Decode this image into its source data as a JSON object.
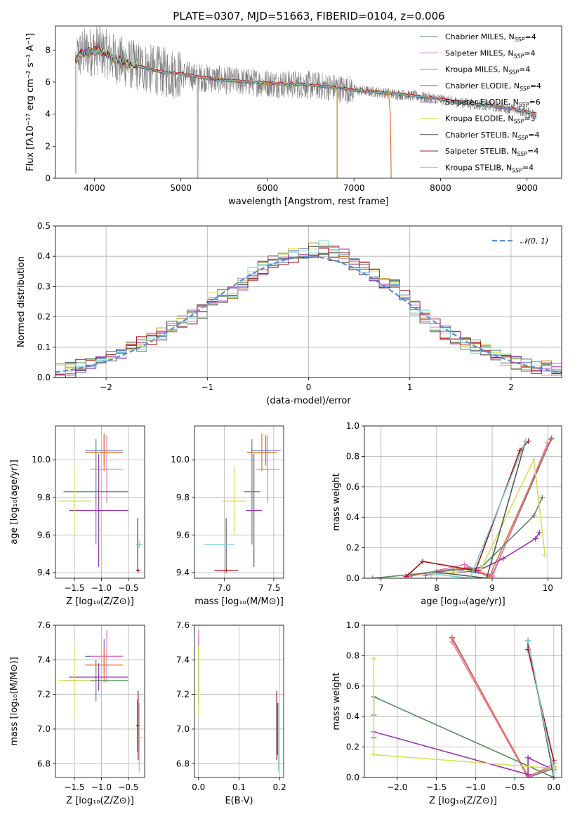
{
  "figure": {
    "title": "PLATE=0307, MJD=51663, FIBERID=0104, z=0.006"
  },
  "colors": {
    "chabrier_miles": "#5b73c4",
    "salpeter_miles": "#e377c2",
    "kroupa_miles": "#b8860b",
    "chabrier_elodie": "#5a8a62",
    "salpeter_elodie": "#9b30b0",
    "kroupa_elodie": "#d4e157",
    "chabrier_stelib": "#555555",
    "salpeter_stelib": "#a50f15",
    "kroupa_stelib": "#79d0d2",
    "normal": "#5b8bd8",
    "orange": "#e8742a",
    "grid": "#b0b0b0"
  },
  "chart_data": [
    {
      "id": "spectrum",
      "type": "line",
      "title": "PLATE=0307, MJD=51663, FIBERID=0104, z=0.006",
      "xlabel": "wavelength [Angstrom, rest frame]",
      "ylabel": "Flux [fλ10⁻¹⁷ erg cm⁻² s⁻¹ A⁻¹]",
      "xlim": [
        3550,
        9400
      ],
      "ylim": [
        0,
        9.5
      ],
      "xticks": [
        4000,
        5000,
        6000,
        7000,
        8000,
        9000
      ],
      "yticks": [
        0,
        2,
        4,
        6,
        8
      ],
      "grid": false,
      "legend_position": "top-right",
      "data_continuum": {
        "x": [
          3780,
          3850,
          3950,
          4050,
          4150,
          4300,
          4500,
          4800,
          5000,
          5200,
          5500,
          5800,
          6100,
          6400,
          6700,
          7000,
          7300,
          7600,
          7900,
          8200,
          8500,
          8800,
          9100
        ],
        "y": [
          7.4,
          7.8,
          7.9,
          8.0,
          7.7,
          7.3,
          7.0,
          6.6,
          6.5,
          6.3,
          6.1,
          6.0,
          5.9,
          5.85,
          5.7,
          5.5,
          5.35,
          5.2,
          5.0,
          4.75,
          4.55,
          4.35,
          4.0
        ]
      },
      "series": [
        {
          "name": "Chabrier MILES, N_SSP=4",
          "legend": "Chabrier MILES, N",
          "nssp": "4",
          "color_key": "chabrier_miles"
        },
        {
          "name": "Salpeter MILES, N_SSP=4",
          "legend": "Salpeter MILES, N",
          "nssp": "4",
          "color_key": "salpeter_miles"
        },
        {
          "name": "Kroupa MILES, N_SSP=4",
          "legend": "Kroupa MILES, N",
          "nssp": "4",
          "color_key": "kroupa_miles"
        },
        {
          "name": "Chabrier ELODIE, N_SSP=4",
          "legend": "Chabrier ELODIE, N",
          "nssp": "4",
          "color_key": "chabrier_elodie"
        },
        {
          "name": "Salpeter ELODIE, N_SSP=6",
          "legend": "Salpeter ELODIE, N",
          "nssp": "6",
          "color_key": "salpeter_elodie"
        },
        {
          "name": "Kroupa ELODIE, N_SSP=3",
          "legend": "Kroupa ELODIE, N",
          "nssp": "3",
          "color_key": "kroupa_elodie"
        },
        {
          "name": "Chabrier STELIB, N_SSP=4",
          "legend": "Chabrier STELIB, N",
          "nssp": "4",
          "color_key": "chabrier_stelib"
        },
        {
          "name": "Salpeter STELIB, N_SSP=4",
          "legend": "Salpeter STELIB, N",
          "nssp": "4",
          "color_key": "salpeter_stelib"
        },
        {
          "name": "Kroupa STELIB, N_SSP=4",
          "legend": "Kroupa STELIB, N",
          "nssp": "4",
          "color_key": "kroupa_stelib"
        }
      ],
      "legend_subscript": "SSP"
    },
    {
      "id": "residuals",
      "type": "line",
      "xlabel": "(data-model)/error",
      "ylabel": "Normed distribution",
      "xlim": [
        -2.5,
        2.5
      ],
      "ylim": [
        0,
        0.5
      ],
      "xticks": [
        -2,
        -1,
        0,
        1,
        2
      ],
      "xticklabels": [
        "−2",
        "−1",
        "0",
        "1",
        "2"
      ],
      "yticks": [
        0.0,
        0.1,
        0.2,
        0.3,
        0.4,
        0.5
      ],
      "yticklabels": [
        "0.0",
        "0.1",
        "0.2",
        "0.3",
        "0.4",
        "0.5"
      ],
      "grid": true,
      "legend_position": "top-right",
      "legend": "𝒩(0, 1)",
      "bin_width": 0.1,
      "histogram_centers": [
        -2.45,
        -2.35,
        -2.25,
        -2.15,
        -2.05,
        -1.95,
        -1.85,
        -1.75,
        -1.65,
        -1.55,
        -1.45,
        -1.35,
        -1.25,
        -1.15,
        -1.05,
        -0.95,
        -0.85,
        -0.75,
        -0.65,
        -0.55,
        -0.45,
        -0.35,
        -0.25,
        -0.15,
        -0.05,
        0.05,
        0.15,
        0.25,
        0.35,
        0.45,
        0.55,
        0.65,
        0.75,
        0.85,
        0.95,
        1.05,
        1.15,
        1.25,
        1.35,
        1.45,
        1.55,
        1.65,
        1.75,
        1.85,
        1.95,
        2.05,
        2.15,
        2.25,
        2.35,
        2.45
      ],
      "histogram_mean": [
        0.022,
        0.025,
        0.035,
        0.048,
        0.062,
        0.072,
        0.085,
        0.098,
        0.11,
        0.125,
        0.145,
        0.165,
        0.18,
        0.2,
        0.22,
        0.26,
        0.27,
        0.28,
        0.31,
        0.34,
        0.36,
        0.38,
        0.39,
        0.4,
        0.41,
        0.42,
        0.43,
        0.41,
        0.4,
        0.38,
        0.36,
        0.34,
        0.32,
        0.3,
        0.28,
        0.23,
        0.2,
        0.17,
        0.15,
        0.13,
        0.115,
        0.1,
        0.085,
        0.07,
        0.06,
        0.05,
        0.04,
        0.035,
        0.03,
        0.022
      ]
    },
    {
      "id": "age_vs_Z",
      "type": "scatter",
      "xlabel": "Z [log₁₀(Z/Z⊙)]",
      "ylabel": "age  [log₁₀(age/yr)]",
      "xlim": [
        -1.85,
        -0.2
      ],
      "ylim": [
        9.37,
        10.18
      ],
      "xticks": [
        -1.5,
        -1.0,
        -0.5
      ],
      "xticklabels": [
        "−1.5",
        "−1.0",
        "−0.5"
      ],
      "yticks": [
        9.4,
        9.6,
        9.8,
        10.0
      ],
      "yticklabels": [
        "9.4",
        "9.6",
        "9.8",
        "10.0"
      ],
      "grid": true,
      "points": [
        {
          "x": -0.95,
          "y": 10.05,
          "xerr": 0.35,
          "yerr": 0.08,
          "color_key": "chabrier_miles"
        },
        {
          "x": -0.9,
          "y": 9.95,
          "xerr": 0.3,
          "yerr": 0.18,
          "color_key": "salpeter_miles"
        },
        {
          "x": -0.95,
          "y": 10.04,
          "xerr": 0.35,
          "yerr": 0.1,
          "color_key": "orange"
        },
        {
          "x": -1.1,
          "y": 9.83,
          "xerr": 0.6,
          "yerr": 0.28,
          "color_key": "chabrier_elodie"
        },
        {
          "x": -1.05,
          "y": 9.73,
          "xerr": 0.55,
          "yerr": 0.3,
          "color_key": "salpeter_elodie"
        },
        {
          "x": -1.5,
          "y": 9.78,
          "xerr": 0.3,
          "yerr": 0.18,
          "color_key": "kroupa_elodie"
        },
        {
          "x": -0.33,
          "y": 9.55,
          "xerr": 0.02,
          "yerr": 0.14,
          "color_key": "chabrier_stelib"
        },
        {
          "x": -0.32,
          "y": 9.41,
          "xerr": 0.04,
          "yerr": 0.01,
          "color_key": "salpeter_stelib"
        },
        {
          "x": -0.3,
          "y": 9.55,
          "xerr": 0.06,
          "yerr": 0.02,
          "color_key": "kroupa_stelib"
        }
      ]
    },
    {
      "id": "age_vs_mass",
      "type": "scatter",
      "xlabel": "mass [log₁₀(M/M⊙)]",
      "xlim": [
        6.7,
        7.6
      ],
      "ylim": [
        9.37,
        10.18
      ],
      "xticks": [
        7.0,
        7.5
      ],
      "xticklabels": [
        "7.0",
        "7.5"
      ],
      "yticks": [
        9.4,
        9.6,
        9.8,
        10.0
      ],
      "yticklabels": [
        "9.4",
        "9.6",
        "9.8",
        "10.0"
      ],
      "grid": true,
      "points": [
        {
          "x": 7.42,
          "y": 10.05,
          "xerr": 0.15,
          "yerr": 0.08,
          "color_key": "chabrier_miles"
        },
        {
          "x": 7.44,
          "y": 9.95,
          "xerr": 0.12,
          "yerr": 0.18,
          "color_key": "salpeter_miles"
        },
        {
          "x": 7.38,
          "y": 10.04,
          "xerr": 0.15,
          "yerr": 0.1,
          "color_key": "orange"
        },
        {
          "x": 7.28,
          "y": 9.83,
          "xerr": 0.08,
          "yerr": 0.28,
          "color_key": "chabrier_elodie"
        },
        {
          "x": 7.3,
          "y": 9.73,
          "xerr": 0.08,
          "yerr": 0.3,
          "color_key": "salpeter_elodie"
        },
        {
          "x": 7.1,
          "y": 9.78,
          "xerr": 0.12,
          "yerr": 0.18,
          "color_key": "kroupa_elodie"
        },
        {
          "x": 7.02,
          "y": 9.55,
          "xerr": 0.0,
          "yerr": 0.14,
          "color_key": "chabrier_stelib"
        },
        {
          "x": 7.02,
          "y": 9.41,
          "xerr": 0.12,
          "yerr": 0.01,
          "color_key": "salpeter_stelib"
        },
        {
          "x": 6.95,
          "y": 9.55,
          "xerr": 0.15,
          "yerr": 0.0,
          "color_key": "kroupa_stelib"
        }
      ]
    },
    {
      "id": "weight_vs_age",
      "type": "line",
      "xlabel": "age  [log₁₀(age/yr)]",
      "ylabel": "mass weight",
      "xlim": [
        6.7,
        10.25
      ],
      "ylim": [
        0,
        1.0
      ],
      "xticks": [
        7,
        8,
        9,
        10
      ],
      "xticklabels": [
        "7",
        "8",
        "9",
        "10"
      ],
      "yticks": [
        0.0,
        0.2,
        0.4,
        0.6,
        0.8,
        1.0
      ],
      "yticklabels": [
        "0.0",
        "0.2",
        "0.4",
        "0.6",
        "0.8",
        "1.0"
      ],
      "grid": true,
      "series": [
        {
          "color_key": "chabrier_miles",
          "x": [
            7.5,
            8.3,
            9.0,
            10.07
          ],
          "y": [
            0.02,
            0.06,
            0.02,
            0.92
          ]
        },
        {
          "color_key": "salpeter_miles",
          "x": [
            7.5,
            8.5,
            9.0,
            10.0
          ],
          "y": [
            0.01,
            0.09,
            0.01,
            0.89
          ]
        },
        {
          "color_key": "orange",
          "x": [
            7.55,
            8.55,
            8.95,
            10.05
          ],
          "y": [
            0.02,
            0.07,
            0.01,
            0.91
          ]
        },
        {
          "color_key": "chabrier_elodie",
          "x": [
            6.85,
            8.8,
            9.75,
            9.9
          ],
          "y": [
            0.0,
            0.07,
            0.41,
            0.53
          ]
        },
        {
          "color_key": "salpeter_elodie",
          "x": [
            7.8,
            8.75,
            9.2,
            9.78,
            9.85
          ],
          "y": [
            0.02,
            0.05,
            0.13,
            0.26,
            0.3
          ]
        },
        {
          "color_key": "kroupa_elodie",
          "x": [
            7.9,
            8.8,
            9.75,
            9.95
          ],
          "y": [
            0.02,
            0.06,
            0.78,
            0.15
          ]
        },
        {
          "color_key": "chabrier_stelib",
          "x": [
            8.0,
            8.9,
            9.6
          ],
          "y": [
            0.04,
            0.0,
            0.9
          ]
        },
        {
          "color_key": "salpeter_stelib",
          "x": [
            7.45,
            7.75,
            8.7,
            9.5,
            9.65
          ],
          "y": [
            0.01,
            0.11,
            0.05,
            0.84,
            0.9
          ]
        },
        {
          "color_key": "kroupa_stelib",
          "x": [
            7.9,
            8.6,
            9.6
          ],
          "y": [
            0.03,
            0.0,
            0.9
          ]
        }
      ]
    },
    {
      "id": "mass_vs_Z",
      "type": "scatter",
      "xlabel": "Z [log₁₀(Z/Z⊙)]",
      "ylabel": "mass [log₁₀(M/M⊙)]",
      "xlim": [
        -1.85,
        -0.2
      ],
      "ylim": [
        6.72,
        7.6
      ],
      "xticks": [
        -1.5,
        -1.0,
        -0.5
      ],
      "xticklabels": [
        "−1.5",
        "−1.0",
        "−0.5"
      ],
      "yticks": [
        6.8,
        7.0,
        7.2,
        7.4,
        7.6
      ],
      "yticklabels": [
        "6.8",
        "7.0",
        "7.2",
        "7.4",
        "7.6"
      ],
      "grid": true,
      "points": [
        {
          "x": -0.95,
          "y": 7.42,
          "xerr": 0.35,
          "yerr": 0.1,
          "color_key": "chabrier_miles"
        },
        {
          "x": -0.9,
          "y": 7.42,
          "xerr": 0.3,
          "yerr": 0.15,
          "color_key": "salpeter_miles"
        },
        {
          "x": -0.95,
          "y": 7.37,
          "xerr": 0.35,
          "yerr": 0.1,
          "color_key": "orange"
        },
        {
          "x": -1.1,
          "y": 7.28,
          "xerr": 0.6,
          "yerr": 0.12,
          "color_key": "chabrier_elodie"
        },
        {
          "x": -1.05,
          "y": 7.3,
          "xerr": 0.55,
          "yerr": 0.08,
          "color_key": "salpeter_elodie"
        },
        {
          "x": -1.5,
          "y": 7.28,
          "xerr": 0.3,
          "yerr": 0.2,
          "color_key": "kroupa_elodie"
        },
        {
          "x": -0.33,
          "y": 7.02,
          "xerr": 0.02,
          "yerr": 0.15,
          "color_key": "chabrier_stelib"
        },
        {
          "x": -0.32,
          "y": 7.02,
          "xerr": 0.04,
          "yerr": 0.2,
          "color_key": "salpeter_stelib"
        },
        {
          "x": -0.3,
          "y": 6.95,
          "xerr": 0.06,
          "yerr": 0.2,
          "color_key": "kroupa_stelib"
        }
      ]
    },
    {
      "id": "mass_vs_ebv",
      "type": "scatter",
      "xlabel": "E(B-V)",
      "xlim": [
        -0.01,
        0.21
      ],
      "ylim": [
        6.72,
        7.6
      ],
      "xticks": [
        0.0,
        0.1,
        0.2
      ],
      "xticklabels": [
        "0.0",
        "0.1",
        "0.2"
      ],
      "yticks": [
        6.8,
        7.0,
        7.2,
        7.4,
        7.6
      ],
      "yticklabels": [
        "6.8",
        "7.0",
        "7.2",
        "7.4",
        "7.6"
      ],
      "grid": true,
      "points": [
        {
          "x": 0.0,
          "y": 7.42,
          "xerr": 0.0,
          "yerr": 0.1,
          "color_key": "chabrier_miles"
        },
        {
          "x": 0.0,
          "y": 7.42,
          "xerr": 0.0,
          "yerr": 0.15,
          "color_key": "salpeter_miles"
        },
        {
          "x": 0.0,
          "y": 7.37,
          "xerr": 0.0,
          "yerr": 0.1,
          "color_key": "orange"
        },
        {
          "x": 0.0,
          "y": 7.28,
          "xerr": 0.0,
          "yerr": 0.12,
          "color_key": "chabrier_elodie"
        },
        {
          "x": 0.0,
          "y": 7.3,
          "xerr": 0.0,
          "yerr": 0.08,
          "color_key": "salpeter_elodie"
        },
        {
          "x": 0.0,
          "y": 7.28,
          "xerr": 0.0,
          "yerr": 0.2,
          "color_key": "kroupa_elodie"
        },
        {
          "x": 0.195,
          "y": 7.0,
          "xerr": 0.0,
          "yerr": 0.15,
          "color_key": "chabrier_stelib"
        },
        {
          "x": 0.193,
          "y": 7.02,
          "xerr": 0.0,
          "yerr": 0.2,
          "color_key": "salpeter_stelib"
        },
        {
          "x": 0.197,
          "y": 6.95,
          "xerr": 0.0,
          "yerr": 0.2,
          "color_key": "kroupa_stelib"
        }
      ]
    },
    {
      "id": "weight_vs_Z",
      "type": "line",
      "xlabel": "Z [log₁₀(Z/Z⊙)]",
      "ylabel": "mass weight",
      "xlim": [
        -2.42,
        0.1
      ],
      "ylim": [
        0,
        1.0
      ],
      "xticks": [
        -2.0,
        -1.5,
        -1.0,
        -0.5,
        0.0
      ],
      "xticklabels": [
        "−2.0",
        "−1.5",
        "−1.0",
        "−0.5",
        "0.0"
      ],
      "yticks": [
        0.0,
        0.2,
        0.4,
        0.6,
        0.8,
        1.0
      ],
      "yticklabels": [
        "0.0",
        "0.2",
        "0.4",
        "0.6",
        "0.8",
        "1.0"
      ],
      "grid": true,
      "series": [
        {
          "color_key": "chabrier_miles",
          "x": [
            -1.3,
            -0.33,
            0.0
          ],
          "y": [
            0.92,
            0.0,
            0.06
          ]
        },
        {
          "color_key": "salpeter_miles",
          "x": [
            -1.3,
            -0.33,
            0.0
          ],
          "y": [
            0.89,
            0.0,
            0.09
          ]
        },
        {
          "color_key": "orange",
          "x": [
            -1.3,
            -0.33,
            0.0
          ],
          "y": [
            0.91,
            0.01,
            0.07
          ]
        },
        {
          "color_key": "chabrier_elodie",
          "x": [
            -2.3,
            -2.3,
            0.0
          ],
          "y": [
            0.41,
            0.53,
            0.0
          ]
        },
        {
          "color_key": "salpeter_elodie",
          "x": [
            -2.3,
            -2.3,
            -0.33,
            -0.33,
            0.0
          ],
          "y": [
            0.26,
            0.3,
            0.02,
            0.13,
            0.05
          ]
        },
        {
          "color_key": "kroupa_elodie",
          "x": [
            -2.3,
            -2.3,
            0.0
          ],
          "y": [
            0.78,
            0.15,
            0.06
          ]
        },
        {
          "color_key": "chabrier_stelib",
          "x": [
            -0.33,
            0.0
          ],
          "y": [
            0.9,
            0.0
          ]
        },
        {
          "color_key": "salpeter_stelib",
          "x": [
            -0.33,
            -0.33,
            0.0
          ],
          "y": [
            0.9,
            0.84,
            0.11
          ]
        },
        {
          "color_key": "kroupa_stelib",
          "x": [
            -0.33,
            0.0
          ],
          "y": [
            0.9,
            0.03
          ]
        }
      ]
    }
  ]
}
